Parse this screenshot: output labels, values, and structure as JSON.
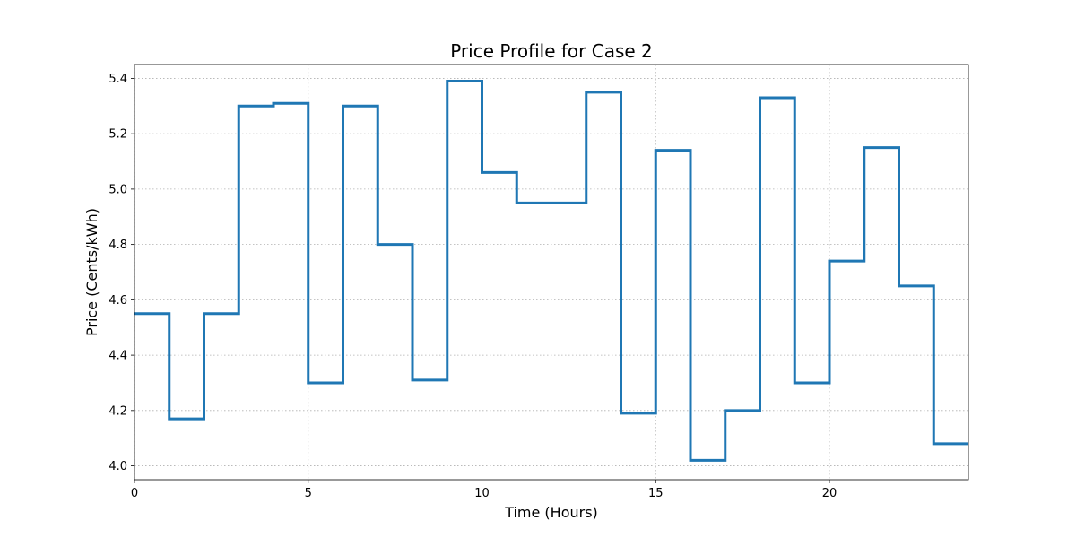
{
  "chart_data": {
    "type": "line",
    "drawstyle": "steps-post",
    "title": "Price Profile for Case 2",
    "xlabel": "Time (Hours)",
    "ylabel": "Price (Cents/kWh)",
    "xlim": [
      0,
      24
    ],
    "ylim": [
      3.95,
      5.45
    ],
    "xticks": [
      0,
      5,
      10,
      15,
      20
    ],
    "yticks": [
      4.0,
      4.2,
      4.4,
      4.6,
      4.8,
      5.0,
      5.2,
      5.4
    ],
    "ytick_labels": [
      "4.0",
      "4.2",
      "4.4",
      "4.6",
      "4.8",
      "5.0",
      "5.2",
      "5.4"
    ],
    "grid": true,
    "series": [
      {
        "color": "#1f77b4",
        "x": [
          0,
          1,
          2,
          3,
          4,
          5,
          6,
          7,
          8,
          9,
          10,
          11,
          12,
          13,
          14,
          15,
          16,
          17,
          18,
          19,
          20,
          21,
          22,
          23,
          24
        ],
        "values": [
          4.55,
          4.17,
          4.55,
          5.3,
          5.31,
          4.3,
          5.3,
          4.8,
          4.31,
          5.39,
          5.06,
          4.95,
          4.95,
          5.35,
          4.19,
          5.14,
          4.02,
          4.2,
          5.33,
          4.3,
          4.74,
          5.15,
          4.65,
          4.08,
          4.08
        ]
      }
    ]
  }
}
